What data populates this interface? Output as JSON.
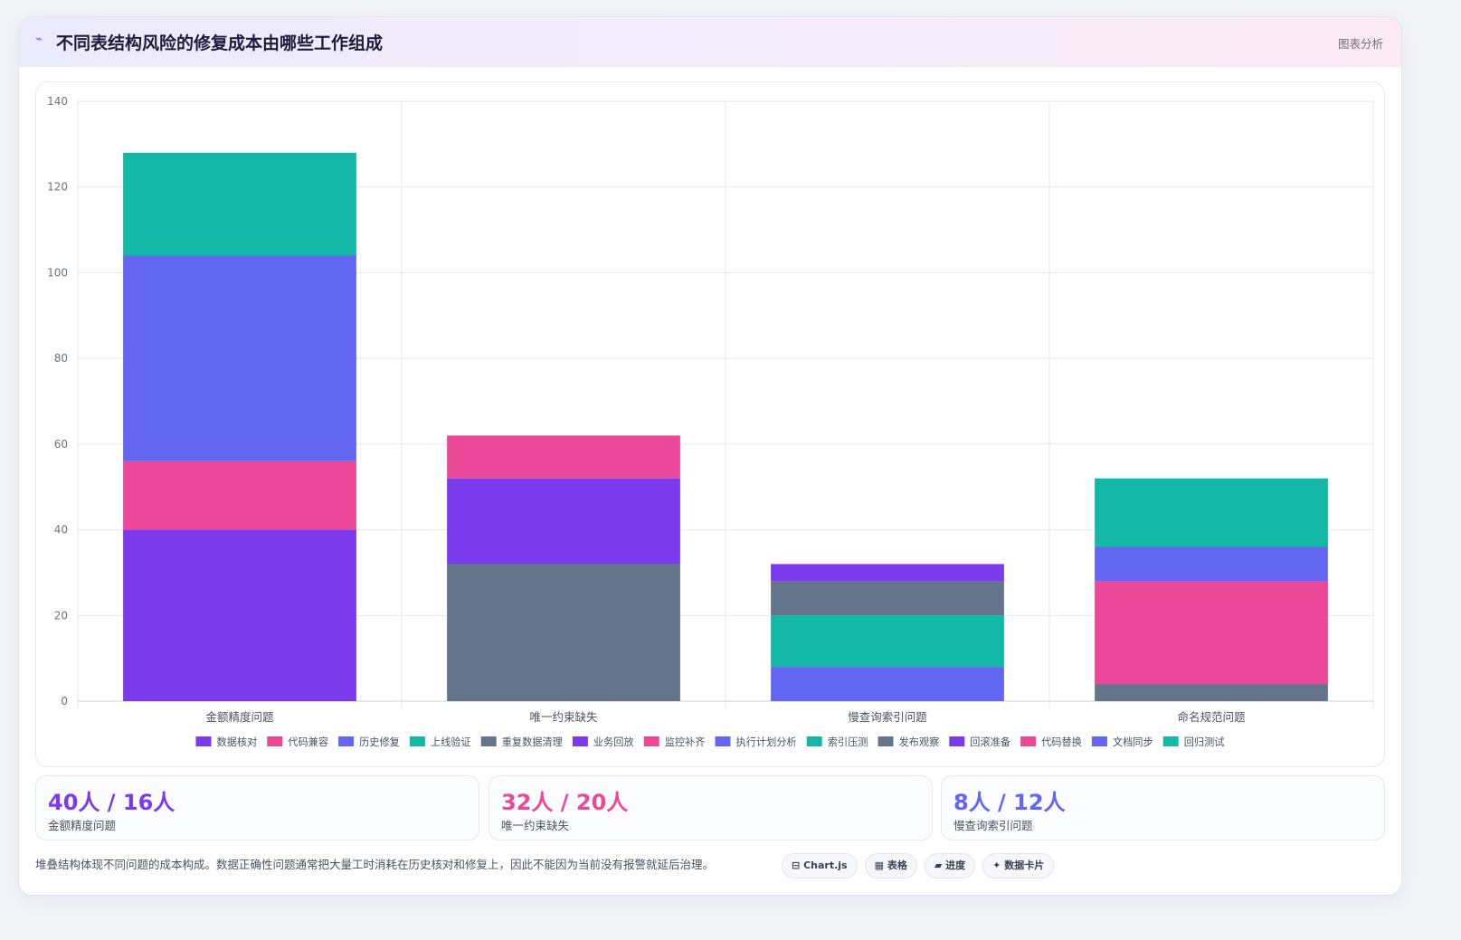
{
  "header": {
    "icon": "chart-icon",
    "title": "不同表结构风险的修复成本由哪些工作组成",
    "tag": "图表分析"
  },
  "chart_data": {
    "type": "bar",
    "stacked": true,
    "categories": [
      "金额精度问题",
      "唯一约束缺失",
      "慢查询索引问题",
      "命名规范问题"
    ],
    "ylim": [
      0,
      140
    ],
    "yticks": [
      0,
      20,
      40,
      60,
      80,
      100,
      120,
      140
    ],
    "grid": true,
    "legend_position": "bottom",
    "series": [
      {
        "name": "数据核对",
        "color": "#7c3aed",
        "values": [
          40,
          0,
          0,
          0
        ]
      },
      {
        "name": "代码兼容",
        "color": "#ec4899",
        "values": [
          16,
          0,
          0,
          0
        ]
      },
      {
        "name": "历史修复",
        "color": "#6366f1",
        "values": [
          48,
          0,
          0,
          0
        ]
      },
      {
        "name": "上线验证",
        "color": "#14b8a6",
        "values": [
          24,
          0,
          0,
          0
        ]
      },
      {
        "name": "重复数据清理",
        "color": "#64748b",
        "values": [
          0,
          32,
          0,
          0
        ]
      },
      {
        "name": "业务回放",
        "color": "#7c3aed",
        "values": [
          0,
          20,
          0,
          0
        ]
      },
      {
        "name": "监控补齐",
        "color": "#ec4899",
        "values": [
          0,
          10,
          0,
          0
        ]
      },
      {
        "name": "执行计划分析",
        "color": "#6366f1",
        "values": [
          0,
          0,
          8,
          0
        ]
      },
      {
        "name": "索引压测",
        "color": "#14b8a6",
        "values": [
          0,
          0,
          12,
          0
        ]
      },
      {
        "name": "发布观察",
        "color": "#64748b",
        "values": [
          0,
          0,
          8,
          4
        ]
      },
      {
        "name": "回滚准备",
        "color": "#7c3aed",
        "values": [
          0,
          0,
          4,
          0
        ]
      },
      {
        "name": "代码替换",
        "color": "#ec4899",
        "values": [
          0,
          0,
          0,
          24
        ]
      },
      {
        "name": "文档同步",
        "color": "#6366f1",
        "values": [
          0,
          0,
          0,
          8
        ]
      },
      {
        "name": "回归测试",
        "color": "#14b8a6",
        "values": [
          0,
          0,
          0,
          16
        ]
      }
    ]
  },
  "stats": [
    {
      "value": "40人 / 16人",
      "label": "金额精度问题",
      "color": "#7c3aed"
    },
    {
      "value": "32人 / 20人",
      "label": "唯一约束缺失",
      "color": "#ec4899"
    },
    {
      "value": "8人 / 12人",
      "label": "慢查询索引问题",
      "color": "#6366f1"
    }
  ],
  "note": "堆叠结构体现不同问题的成本构成。数据正确性问题通常把大量工时消耗在历史核对和修复上，因此不能因为当前没有报警就延后治理。",
  "chips": [
    {
      "icon": "chart-icon",
      "glyph": "⊟",
      "label": "Chart.js"
    },
    {
      "icon": "table-icon",
      "glyph": "▦",
      "label": "表格"
    },
    {
      "icon": "progress-icon",
      "glyph": "▰",
      "label": "进度"
    },
    {
      "icon": "sparkle-icon",
      "glyph": "✦",
      "label": "数据卡片"
    }
  ]
}
